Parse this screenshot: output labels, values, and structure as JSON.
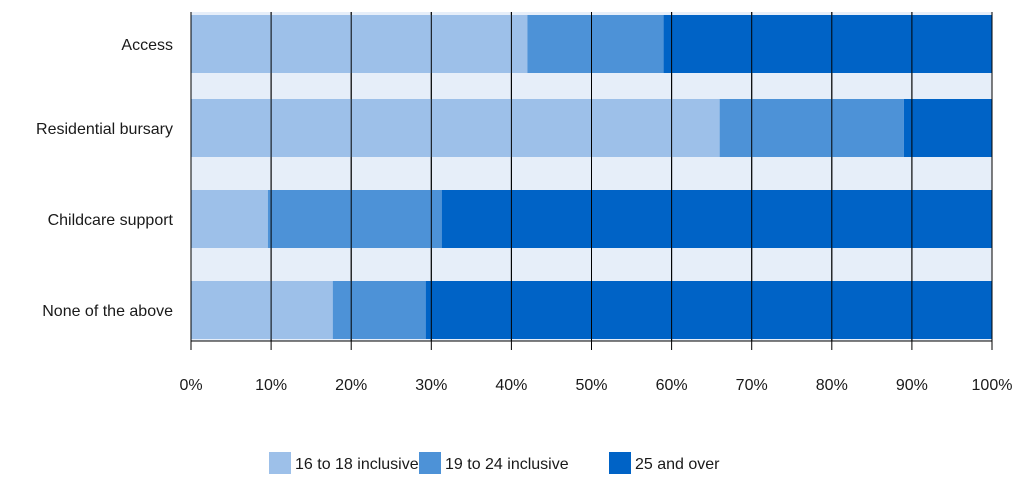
{
  "chart_data": {
    "type": "bar",
    "orientation": "horizontal",
    "stacked": true,
    "percent_stacked": true,
    "categories": [
      "Access",
      "Residential bursary",
      "Childcare support",
      "None of the above"
    ],
    "series": [
      {
        "name": "16 to 18 inclusive",
        "color": "#9dc0e9",
        "values": [
          42,
          66,
          9.6,
          17.7
        ]
      },
      {
        "name": "19 to 24 inclusive",
        "color": "#4d92d7",
        "values": [
          17,
          23,
          21.7,
          11.6
        ]
      },
      {
        "name": "25 and over",
        "color": "#0063c6",
        "values": [
          41,
          11,
          68.7,
          70.7
        ]
      }
    ],
    "x_ticks": [
      "0%",
      "10%",
      "20%",
      "30%",
      "40%",
      "50%",
      "60%",
      "70%",
      "80%",
      "90%",
      "100%"
    ],
    "xlim": [
      0,
      100
    ],
    "grid": true,
    "legend_position": "bottom",
    "colors": {
      "plot_background": "#e6eef9",
      "grid": "#000000",
      "axis": "#000000"
    }
  }
}
